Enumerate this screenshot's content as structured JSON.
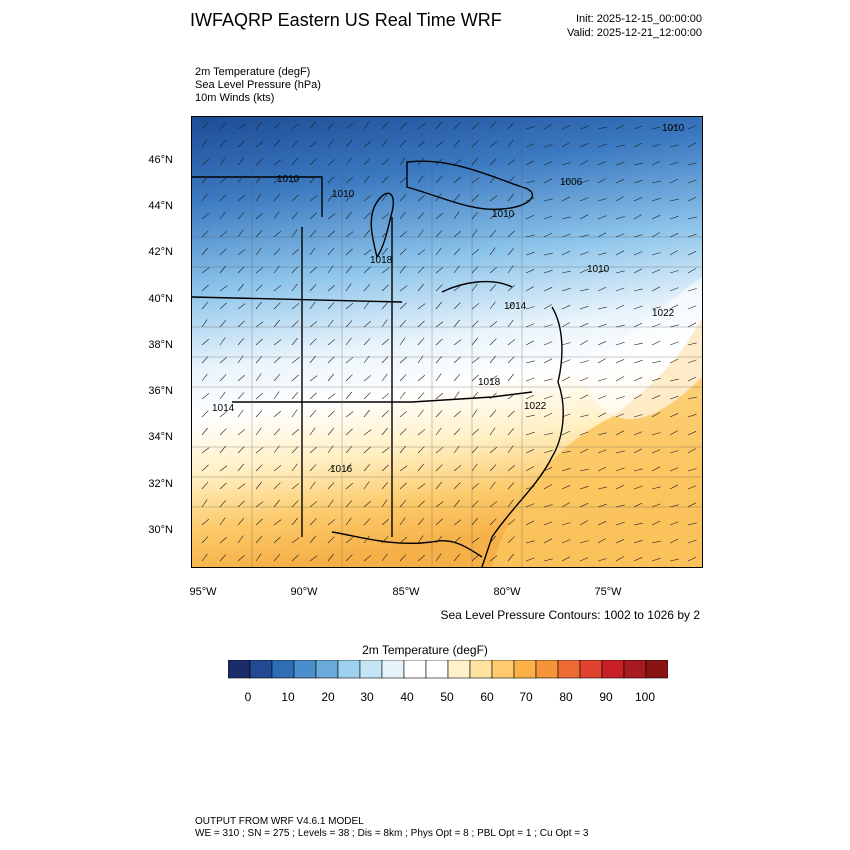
{
  "header": {
    "title": "IWFAQRP Eastern US Real Time WRF",
    "init": "Init: 2025-12-15_00:00:00",
    "valid": "Valid: 2025-12-21_12:00:00"
  },
  "fields": [
    "2m Temperature   (degF)",
    "Sea Level Pressure   (hPa)",
    "10m Winds   (kts)"
  ],
  "map": {
    "lat_labels": [
      "46°N",
      "44°N",
      "42°N",
      "40°N",
      "38°N",
      "36°N",
      "34°N",
      "32°N",
      "30°N"
    ],
    "lon_labels": [
      "95°W",
      "90°W",
      "85°W",
      "80°W",
      "75°W"
    ],
    "contour_labels": [
      "1010",
      "1010",
      "1006",
      "1010",
      "1010",
      "1018",
      "1022",
      "1014",
      "1018",
      "1022",
      "1014",
      "1016",
      "1010"
    ],
    "colors": {
      "cold": "#2a5aa8",
      "cool": "#7fb4e0",
      "mild": "#ffffff",
      "warm": "#f5b34a"
    }
  },
  "slp_note": "Sea Level Pressure Contours: 1002 to 1026 by 2",
  "colorbar": {
    "title": "2m Temperature  (degF)",
    "tick_labels": [
      "0",
      "10",
      "20",
      "30",
      "40",
      "50",
      "60",
      "70",
      "80",
      "90",
      "100"
    ],
    "colors": [
      "#1a2d6b",
      "#214a92",
      "#2f6db5",
      "#4a8ecb",
      "#6aaad9",
      "#9fd0f0",
      "#c4e4f7",
      "#e6f3fb",
      "#ffffff",
      "#ffffff",
      "#fff1c8",
      "#ffe3a0",
      "#ffcb6c",
      "#fbb347",
      "#f7943a",
      "#ef6a32",
      "#e2432e",
      "#c82026",
      "#a71b20",
      "#8a1414"
    ]
  },
  "footer": {
    "line1": "OUTPUT FROM WRF V4.6.1 MODEL",
    "line2": "WE = 310 ; SN = 275 ; Levels = 38 ; Dis = 8km ; Phys Opt = 8 ; PBL Opt = 1 ; Cu Opt = 3"
  }
}
